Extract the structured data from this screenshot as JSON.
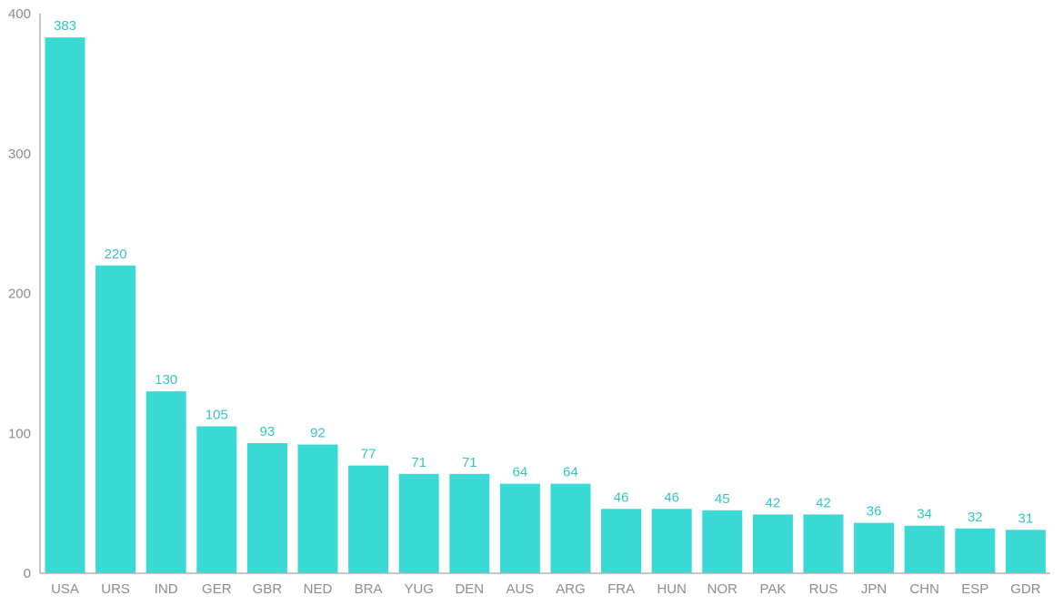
{
  "colors": {
    "bar": "#3ad9d4",
    "value_label": "#33c6c2",
    "axis": "#b3b3b3",
    "tick_text": "#8c8c8c"
  },
  "chart_data": {
    "type": "bar",
    "title": "",
    "xlabel": "",
    "ylabel": "",
    "categories": [
      "USA",
      "URS",
      "IND",
      "GER",
      "GBR",
      "NED",
      "BRA",
      "YUG",
      "DEN",
      "AUS",
      "ARG",
      "FRA",
      "HUN",
      "NOR",
      "PAK",
      "RUS",
      "JPN",
      "CHN",
      "ESP",
      "GDR"
    ],
    "values": [
      383,
      220,
      130,
      105,
      93,
      92,
      77,
      71,
      71,
      64,
      64,
      46,
      46,
      45,
      42,
      42,
      36,
      34,
      32,
      31
    ],
    "ylim": [
      0,
      400
    ],
    "yticks": [
      0,
      100,
      200,
      300,
      400
    ],
    "grid": false,
    "legend": "none",
    "data_labels": true
  }
}
